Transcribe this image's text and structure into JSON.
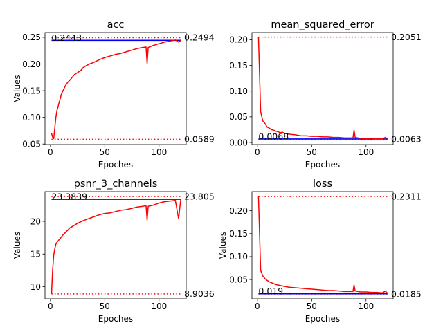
{
  "chart_data": [
    {
      "type": "line",
      "title": "acc",
      "xlabel": "Epoches",
      "ylabel": "Values",
      "xlim": [
        -5,
        125
      ],
      "ylim": [
        0.049,
        0.259
      ],
      "xticks": [
        0,
        50,
        100
      ],
      "yticks": [
        0.05,
        0.1,
        0.15,
        0.2,
        0.25
      ],
      "ytick_labels": [
        "0.05",
        "0.10",
        "0.15",
        "0.20",
        "0.25"
      ],
      "ref_lines": {
        "max": 0.2494,
        "min": 0.0589,
        "last": 0.2443
      },
      "ref_labels": {
        "max": "0.2494",
        "min": "0.0589",
        "last": "0.2443"
      },
      "x": [
        1,
        2,
        3,
        4,
        5,
        6,
        7,
        8,
        9,
        10,
        12,
        14,
        16,
        18,
        20,
        22,
        25,
        28,
        30,
        33,
        36,
        40,
        45,
        50,
        55,
        60,
        65,
        70,
        75,
        80,
        85,
        88,
        89,
        90,
        95,
        100,
        105,
        110,
        115,
        118,
        120
      ],
      "y": [
        0.07,
        0.063,
        0.06,
        0.08,
        0.1,
        0.113,
        0.12,
        0.128,
        0.135,
        0.143,
        0.152,
        0.16,
        0.166,
        0.17,
        0.175,
        0.18,
        0.184,
        0.188,
        0.193,
        0.197,
        0.2,
        0.203,
        0.208,
        0.212,
        0.215,
        0.218,
        0.22,
        0.223,
        0.226,
        0.229,
        0.231,
        0.232,
        0.201,
        0.231,
        0.235,
        0.238,
        0.241,
        0.243,
        0.245,
        0.241,
        0.244
      ]
    },
    {
      "type": "line",
      "title": "mean_squared_error",
      "xlabel": "Epoches",
      "ylabel": "",
      "xlim": [
        -5,
        125
      ],
      "ylim": [
        -0.004,
        0.214
      ],
      "xticks": [
        0,
        50,
        100
      ],
      "yticks": [
        0.0,
        0.05,
        0.1,
        0.15,
        0.2
      ],
      "ytick_labels": [
        "0.00",
        "0.05",
        "0.10",
        "0.15",
        "0.20"
      ],
      "ref_lines": {
        "max": 0.2051,
        "min": 0.0063,
        "last": 0.0068
      },
      "ref_labels": {
        "max": "0.2051",
        "min": "0.0063",
        "last": "0.0068"
      },
      "x": [
        1,
        3,
        5,
        7,
        9,
        11,
        13,
        15,
        17,
        19,
        21,
        23,
        25,
        27,
        30,
        35,
        40,
        45,
        50,
        55,
        60,
        65,
        70,
        75,
        80,
        85,
        88,
        89,
        90,
        95,
        100,
        105,
        110,
        115,
        118,
        120
      ],
      "y": [
        0.2051,
        0.06,
        0.042,
        0.037,
        0.03,
        0.028,
        0.025,
        0.024,
        0.022,
        0.021,
        0.019,
        0.02,
        0.018,
        0.017,
        0.016,
        0.015,
        0.013,
        0.013,
        0.012,
        0.012,
        0.011,
        0.011,
        0.01,
        0.01,
        0.009,
        0.009,
        0.009,
        0.024,
        0.01,
        0.008,
        0.008,
        0.008,
        0.007,
        0.007,
        0.01,
        0.0068
      ]
    },
    {
      "type": "line",
      "title": "psnr_3_channels",
      "xlabel": "Epoches",
      "ylabel": "Values",
      "xlim": [
        -5,
        125
      ],
      "ylim": [
        8.15,
        24.55
      ],
      "xticks": [
        0,
        50,
        100
      ],
      "yticks": [
        10,
        15,
        20
      ],
      "ytick_labels": [
        "10",
        "15",
        "20"
      ],
      "ref_lines": {
        "max": 23.805,
        "min": 8.9036,
        "last": 23.3839
      },
      "ref_labels": {
        "max": "23.805",
        "min": "8.9036",
        "last": "23.3839"
      },
      "x": [
        1,
        2,
        3,
        4,
        5,
        6,
        8,
        10,
        12,
        15,
        18,
        20,
        25,
        30,
        35,
        40,
        45,
        50,
        55,
        60,
        65,
        70,
        75,
        80,
        85,
        88,
        89,
        90,
        95,
        100,
        105,
        110,
        115,
        118,
        120
      ],
      "y": [
        8.9036,
        12.5,
        14.8,
        15.8,
        16.5,
        16.8,
        17.2,
        17.6,
        18.0,
        18.5,
        19.0,
        19.2,
        19.7,
        20.1,
        20.4,
        20.7,
        21.0,
        21.2,
        21.3,
        21.5,
        21.7,
        21.8,
        22.0,
        22.2,
        22.3,
        22.4,
        20.2,
        22.3,
        22.5,
        22.8,
        23.0,
        23.1,
        23.2,
        20.4,
        23.3839
      ]
    },
    {
      "type": "line",
      "title": "loss",
      "xlabel": "Epoches",
      "ylabel": "Values",
      "xlim": [
        -5,
        125
      ],
      "ylim": [
        0.0079,
        0.2417
      ],
      "xticks": [
        0,
        50,
        100
      ],
      "yticks": [
        0.05,
        0.1,
        0.15,
        0.2
      ],
      "ytick_labels": [
        "0.05",
        "0.10",
        "0.15",
        "0.20"
      ],
      "ref_lines": {
        "max": 0.2311,
        "min": 0.0185,
        "last": 0.019
      },
      "ref_labels": {
        "max": "0.2311",
        "min": "0.0185",
        "last": "0.019"
      },
      "x": [
        1,
        3,
        5,
        7,
        9,
        11,
        13,
        15,
        17,
        19,
        21,
        23,
        25,
        27,
        30,
        35,
        40,
        45,
        50,
        55,
        60,
        65,
        70,
        75,
        80,
        85,
        88,
        89,
        90,
        95,
        100,
        105,
        110,
        115,
        118,
        120
      ],
      "y": [
        0.2311,
        0.07,
        0.058,
        0.052,
        0.048,
        0.045,
        0.043,
        0.041,
        0.039,
        0.038,
        0.037,
        0.036,
        0.035,
        0.034,
        0.033,
        0.032,
        0.031,
        0.03,
        0.029,
        0.028,
        0.027,
        0.026,
        0.026,
        0.025,
        0.024,
        0.024,
        0.024,
        0.038,
        0.025,
        0.023,
        0.023,
        0.022,
        0.022,
        0.021,
        0.025,
        0.019
      ]
    }
  ],
  "colors": {
    "series": "#ff0000",
    "ref_minmax": "#ff0000",
    "ref_last": "#0000ff",
    "axis": "#000000"
  }
}
